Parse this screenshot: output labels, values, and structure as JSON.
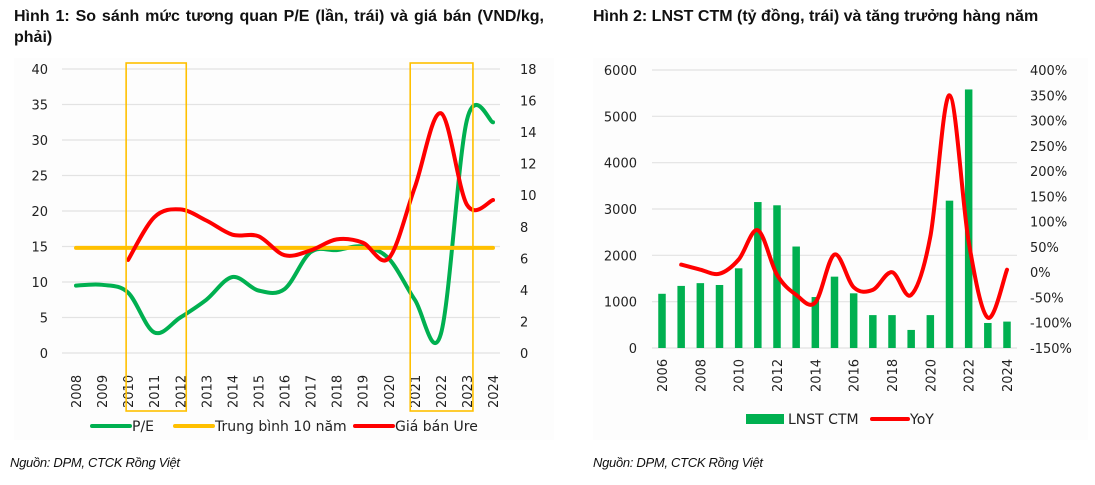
{
  "figure1": {
    "title": "Hình 1: So sánh mức tương quan P/E (lần, trái) và giá bán (VND/kg, phải)",
    "source": "Nguồn: DPM, CTCK Rồng Việt"
  },
  "figure2": {
    "title": "Hình 2: LNST CTM (tỷ đồng, trái) và tăng trưởng hàng năm",
    "source": "Nguồn: DPM, CTCK Rồng Việt"
  },
  "chart_data": [
    {
      "type": "line",
      "title": "Hình 1: So sánh mức tương quan P/E (lần, trái) và giá bán (VND/kg, phải)",
      "x": [
        2008,
        2009,
        2010,
        2011,
        2012,
        2013,
        2014,
        2015,
        2016,
        2017,
        2018,
        2019,
        2020,
        2021,
        2022,
        2023,
        2024
      ],
      "x_tick_labels": [
        "2008",
        "2009",
        "2010",
        "2011",
        "2012",
        "2013",
        "2014",
        "2015",
        "2016",
        "2017",
        "2018",
        "2019",
        "2020",
        "2021",
        "2022",
        "2023",
        "2024"
      ],
      "y_left": {
        "label": "P/E (lần)",
        "lim": [
          0,
          40
        ],
        "ticks": [
          0,
          5,
          10,
          15,
          20,
          25,
          30,
          35,
          40
        ],
        "tick_labels": [
          "0",
          "5",
          "10",
          "15",
          "20",
          "25",
          "30",
          "35",
          "40"
        ]
      },
      "y_right": {
        "label": "Giá bán (VND/kg)",
        "lim": [
          0,
          18
        ],
        "ticks": [
          0,
          2,
          4,
          6,
          8,
          10,
          12,
          14,
          16,
          18
        ],
        "tick_labels": [
          "0",
          "2",
          "4",
          "6",
          "8",
          "10",
          "12",
          "14",
          "16",
          "18"
        ]
      },
      "series": [
        {
          "name": "P/E",
          "axis": "left",
          "color": "#00b050",
          "smooth": true,
          "values": [
            9.5,
            9.6,
            8.5,
            2.9,
            5.0,
            7.5,
            10.7,
            8.8,
            9.0,
            14.2,
            14.5,
            15.0,
            13.3,
            7.5,
            2.7,
            32.8,
            32.5
          ]
        },
        {
          "name": "Trung bình 10 năm",
          "axis": "left",
          "color": "#ffc000",
          "smooth": false,
          "values": [
            14.8,
            14.8,
            14.8,
            14.8,
            14.8,
            14.8,
            14.8,
            14.8,
            14.8,
            14.8,
            14.8,
            14.8,
            14.8,
            14.8,
            14.8,
            14.8,
            14.8
          ]
        },
        {
          "name": "Giá bán Ure",
          "axis": "right",
          "color": "#ff0000",
          "smooth": true,
          "values": [
            null,
            null,
            5.9,
            8.6,
            9.1,
            8.4,
            7.5,
            7.4,
            6.2,
            6.5,
            7.2,
            7.0,
            6.0,
            10.5,
            15.2,
            9.4,
            9.7
          ]
        }
      ],
      "annotations": [
        {
          "type": "highlight-box",
          "x_range": [
            2010,
            2012
          ],
          "color": "#ffc000"
        },
        {
          "type": "highlight-box",
          "x_range": [
            2020.9,
            2023
          ],
          "color": "#ffc000"
        }
      ],
      "legend": {
        "position": "bottom",
        "entries": [
          "P/E",
          "Trung bình 10 năm",
          "Giá bán Ure"
        ]
      },
      "grid": true
    },
    {
      "type": "bar",
      "title": "Hình 2: LNST CTM (tỷ đồng, trái) và tăng trưởng hàng năm",
      "categories": [
        "2006",
        "2007",
        "2008",
        "2009",
        "2010",
        "2011",
        "2012",
        "2013",
        "2014",
        "2015",
        "2016",
        "2017",
        "2018",
        "2019",
        "2020",
        "2021",
        "2022",
        "2023",
        "2024"
      ],
      "x_tick_labels": [
        "2006",
        "2008",
        "2010",
        "2012",
        "2014",
        "2016",
        "2018",
        "2020",
        "2022",
        "2024"
      ],
      "y_left": {
        "label": "LNST CTM (tỷ đồng)",
        "lim": [
          0,
          6000
        ],
        "ticks": [
          0,
          1000,
          2000,
          3000,
          4000,
          5000,
          6000
        ],
        "tick_labels": [
          "0",
          "1000",
          "2000",
          "3000",
          "4000",
          "5000",
          "6000"
        ]
      },
      "y_right": {
        "label": "YoY",
        "lim": [
          -150,
          400
        ],
        "ticks": [
          -150,
          -100,
          -50,
          0,
          50,
          100,
          150,
          200,
          250,
          300,
          350,
          400
        ],
        "tick_labels": [
          "-150%",
          "-100%",
          "-50%",
          "0%",
          "50%",
          "100%",
          "150%",
          "200%",
          "250%",
          "300%",
          "350%",
          "400%"
        ]
      },
      "series": [
        {
          "name": "LNST CTM",
          "kind": "bar",
          "axis": "left",
          "color": "#00b050",
          "values": [
            1170,
            1340,
            1400,
            1360,
            1720,
            3150,
            3080,
            2190,
            1100,
            1540,
            1180,
            710,
            710,
            390,
            710,
            3180,
            5580,
            540,
            570
          ]
        },
        {
          "name": "YoY",
          "kind": "line",
          "axis": "right",
          "color": "#ff0000",
          "smooth": true,
          "unit": "%",
          "values": [
            null,
            15,
            5,
            -3,
            25,
            83,
            -5,
            -45,
            -60,
            35,
            -30,
            -35,
            0,
            -45,
            70,
            350,
            60,
            -90,
            5
          ]
        }
      ],
      "legend": {
        "position": "bottom",
        "entries": [
          "LNST CTM",
          "YoY"
        ]
      },
      "grid": true
    }
  ]
}
